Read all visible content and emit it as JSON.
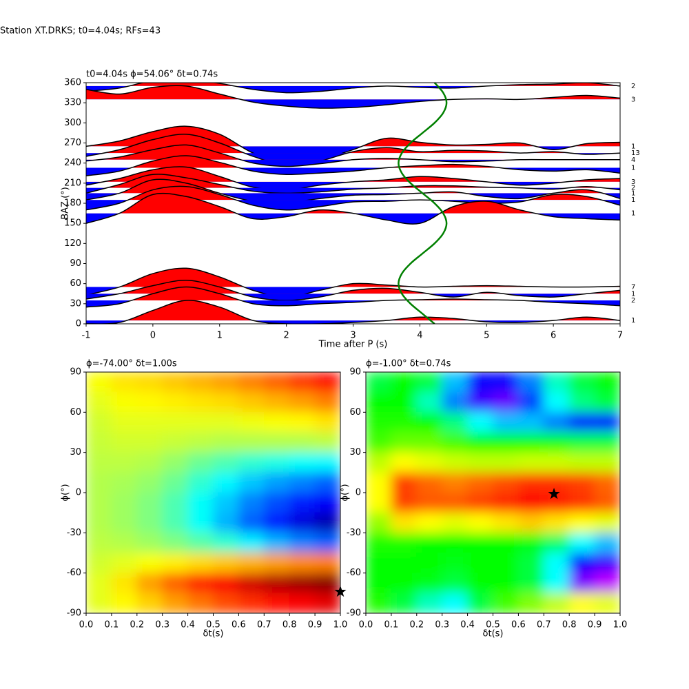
{
  "suptitle": "Station XT.DRKS; t0=4.04s; RFs=43",
  "chart_data": [
    {
      "type": "wiggle",
      "title": "t0=4.04s ϕ=54.06° δt=0.74s",
      "xlabel": "Time after P (s)",
      "ylabel": "BAZ (°)",
      "xlim": [
        -1,
        7
      ],
      "ylim": [
        0,
        360
      ],
      "xticks": [
        -1,
        0,
        1,
        2,
        3,
        4,
        5,
        6,
        7
      ],
      "yticks": [
        0,
        30,
        60,
        90,
        120,
        150,
        180,
        210,
        240,
        270,
        300,
        330,
        360
      ],
      "positive_color": "#ff0000",
      "negative_color": "#0000ff",
      "line_color": "#000000",
      "x": [
        -1,
        -0.5,
        0,
        0.5,
        1,
        1.5,
        2,
        2.5,
        3,
        3.5,
        4,
        4.5,
        5,
        5.5,
        6,
        6.5,
        7
      ],
      "traces": [
        {
          "baz": 355,
          "count": 2,
          "values": [
            -8,
            -3,
            8,
            10,
            4,
            -5,
            -10,
            -8,
            -3,
            0,
            -2,
            -3,
            0,
            2,
            3,
            5,
            0
          ]
        },
        {
          "baz": 335,
          "count": 3,
          "values": [
            15,
            8,
            18,
            20,
            8,
            -4,
            -10,
            -13,
            -12,
            -8,
            -3,
            0,
            1,
            0,
            3,
            6,
            2
          ]
        },
        {
          "baz": 265,
          "count": 1,
          "values": [
            0,
            8,
            22,
            30,
            18,
            -10,
            -25,
            -20,
            -5,
            12,
            6,
            2,
            3,
            5,
            -5,
            4,
            6
          ]
        },
        {
          "baz": 255,
          "count": 13,
          "values": [
            -5,
            5,
            20,
            28,
            15,
            -5,
            -18,
            -12,
            2,
            8,
            2,
            4,
            3,
            0,
            2,
            -2,
            0
          ]
        },
        {
          "baz": 245,
          "count": 4,
          "values": [
            -2,
            4,
            15,
            22,
            10,
            -5,
            -10,
            -6,
            0,
            2,
            0,
            -3,
            -2,
            0,
            0,
            0,
            0
          ]
        },
        {
          "baz": 233,
          "count": 1,
          "values": [
            -12,
            -5,
            10,
            18,
            8,
            -5,
            -10,
            -8,
            -5,
            0,
            3,
            5,
            2,
            -3,
            -5,
            -3,
            -8
          ]
        },
        {
          "baz": 212,
          "count": 3,
          "values": [
            -5,
            5,
            18,
            22,
            8,
            -8,
            -12,
            -5,
            0,
            3,
            8,
            5,
            0,
            -5,
            -2,
            3,
            5
          ]
        },
        {
          "baz": 203,
          "count": 2,
          "values": [
            -8,
            5,
            20,
            15,
            5,
            -5,
            -8,
            -6,
            -2,
            0,
            3,
            3,
            1,
            0,
            -2,
            2,
            -3
          ]
        },
        {
          "baz": 195,
          "count": 1,
          "values": [
            -10,
            0,
            20,
            15,
            0,
            -12,
            -14,
            -8,
            -3,
            -2,
            0,
            2,
            -5,
            -8,
            0,
            5,
            -8
          ]
        },
        {
          "baz": 185,
          "count": 1,
          "values": [
            -15,
            -5,
            15,
            20,
            8,
            -8,
            -15,
            -10,
            -3,
            -2,
            0,
            -2,
            -5,
            -3,
            8,
            5,
            -8
          ]
        },
        {
          "baz": 165,
          "count": 1,
          "values": [
            -15,
            0,
            28,
            25,
            10,
            -8,
            -5,
            5,
            0,
            -10,
            -15,
            10,
            18,
            5,
            -5,
            -8,
            -10
          ]
        },
        {
          "baz": 55,
          "count": 7,
          "values": [
            -12,
            0,
            20,
            28,
            15,
            -5,
            -15,
            -5,
            5,
            3,
            0,
            1,
            2,
            1,
            0,
            0,
            1
          ]
        },
        {
          "baz": 45,
          "count": 1,
          "values": [
            -8,
            0,
            12,
            20,
            10,
            -5,
            -10,
            -5,
            5,
            8,
            2,
            -5,
            2,
            -3,
            -5,
            0,
            5
          ]
        },
        {
          "baz": 35,
          "count": 2,
          "values": [
            -10,
            -5,
            10,
            20,
            10,
            -5,
            -8,
            -5,
            -3,
            0,
            1,
            2,
            1,
            0,
            -3,
            -5,
            -8
          ]
        },
        {
          "baz": 5,
          "count": 1,
          "values": [
            -5,
            -3,
            15,
            30,
            20,
            0,
            -5,
            -5,
            -3,
            0,
            5,
            3,
            -2,
            -3,
            0,
            5,
            0
          ]
        }
      ],
      "curve": {
        "color": "#008000",
        "baz": [
          0,
          15,
          30,
          45,
          60,
          75,
          90,
          105,
          120,
          135,
          150,
          165,
          180,
          195,
          210,
          225,
          240,
          255,
          270,
          285,
          300,
          315,
          330,
          345,
          360
        ],
        "time": [
          4.22,
          4.04,
          3.86,
          3.73,
          3.68,
          3.73,
          3.86,
          4.04,
          4.22,
          4.35,
          4.4,
          4.35,
          4.22,
          4.04,
          3.86,
          3.73,
          3.68,
          3.73,
          3.86,
          4.04,
          4.22,
          4.35,
          4.4,
          4.35,
          4.22
        ]
      }
    },
    {
      "type": "heatmap",
      "title": "ϕ=-74.00° δt=1.00s",
      "xlabel": "δt(s)",
      "ylabel": "ϕ(°)",
      "colormap": "jet",
      "xlim": [
        0,
        1
      ],
      "ylim": [
        -90,
        90
      ],
      "xticks": [
        {
          "value": 0,
          "label": "0.0"
        },
        0.1,
        0.2,
        0.3,
        0.4,
        0.5,
        0.6,
        0.7,
        0.8,
        0.9,
        {
          "value": 1,
          "label": "1.0"
        }
      ],
      "yticks": [
        -90,
        -60,
        -30,
        0,
        30,
        60,
        90
      ],
      "best": {
        "x": 1.0,
        "y": -74
      },
      "z": [
        [
          0.62,
          0.65,
          0.66,
          0.68,
          0.7,
          0.72,
          0.75,
          0.78,
          0.82,
          0.86
        ],
        [
          0.6,
          0.62,
          0.63,
          0.64,
          0.65,
          0.66,
          0.68,
          0.7,
          0.72,
          0.75
        ],
        [
          0.58,
          0.6,
          0.6,
          0.6,
          0.6,
          0.6,
          0.61,
          0.62,
          0.63,
          0.65
        ],
        [
          0.57,
          0.58,
          0.58,
          0.57,
          0.56,
          0.55,
          0.55,
          0.55,
          0.55,
          0.56
        ],
        [
          0.56,
          0.56,
          0.55,
          0.52,
          0.48,
          0.45,
          0.42,
          0.4,
          0.38,
          0.37
        ],
        [
          0.55,
          0.54,
          0.52,
          0.48,
          0.42,
          0.37,
          0.32,
          0.28,
          0.25,
          0.22
        ],
        [
          0.55,
          0.53,
          0.5,
          0.45,
          0.38,
          0.32,
          0.25,
          0.2,
          0.15,
          0.12
        ],
        [
          0.55,
          0.53,
          0.5,
          0.45,
          0.38,
          0.3,
          0.22,
          0.15,
          0.09,
          0.05
        ],
        [
          0.56,
          0.55,
          0.53,
          0.5,
          0.46,
          0.42,
          0.36,
          0.3,
          0.25,
          0.22
        ],
        [
          0.58,
          0.6,
          0.62,
          0.64,
          0.66,
          0.68,
          0.7,
          0.72,
          0.74,
          0.75
        ],
        [
          0.6,
          0.65,
          0.72,
          0.78,
          0.84,
          0.88,
          0.92,
          0.95,
          0.97,
          0.99
        ],
        [
          0.6,
          0.63,
          0.67,
          0.72,
          0.76,
          0.8,
          0.83,
          0.86,
          0.88,
          0.9
        ]
      ]
    },
    {
      "type": "heatmap",
      "title": "ϕ=-1.00° δt=0.74s",
      "xlabel": "δt(s)",
      "ylabel": "ϕ(°)",
      "colormap": "hsv",
      "xlim": [
        0,
        1
      ],
      "ylim": [
        -90,
        90
      ],
      "xticks": [
        {
          "value": 0,
          "label": "0.0"
        },
        0.1,
        0.2,
        0.3,
        0.4,
        0.5,
        0.6,
        0.7,
        0.8,
        0.9,
        {
          "value": 1,
          "label": "1.0"
        }
      ],
      "yticks": [
        -90,
        -60,
        -30,
        0,
        30,
        60,
        90
      ],
      "best": {
        "x": 0.74,
        "y": -1
      },
      "z": [
        [
          0.55,
          0.6,
          0.55,
          0.35,
          0.2,
          0.2,
          0.3,
          0.45,
          0.55,
          0.6
        ],
        [
          0.6,
          0.6,
          0.45,
          0.3,
          0.15,
          0.12,
          0.25,
          0.4,
          0.5,
          0.55
        ],
        [
          0.62,
          0.62,
          0.6,
          0.5,
          0.4,
          0.35,
          0.35,
          0.3,
          0.22,
          0.2
        ],
        [
          0.65,
          0.68,
          0.68,
          0.65,
          0.6,
          0.6,
          0.6,
          0.58,
          0.55,
          0.55
        ],
        [
          0.75,
          0.8,
          0.78,
          0.76,
          0.75,
          0.75,
          0.76,
          0.76,
          0.75,
          0.75
        ],
        [
          0.8,
          0.95,
          0.92,
          0.9,
          0.92,
          0.94,
          0.96,
          0.96,
          0.95,
          0.92
        ],
        [
          0.8,
          0.95,
          0.93,
          0.93,
          0.95,
          0.97,
          1.0,
          0.98,
          0.96,
          0.93
        ],
        [
          0.72,
          0.82,
          0.8,
          0.78,
          0.8,
          0.82,
          0.84,
          0.82,
          0.8,
          0.78
        ],
        [
          0.62,
          0.62,
          0.6,
          0.6,
          0.6,
          0.6,
          0.58,
          0.52,
          0.4,
          0.35
        ],
        [
          0.6,
          0.6,
          0.6,
          0.58,
          0.6,
          0.6,
          0.55,
          0.4,
          0.2,
          0.15
        ],
        [
          0.6,
          0.6,
          0.58,
          0.55,
          0.6,
          0.6,
          0.55,
          0.4,
          0.1,
          0.05
        ],
        [
          0.62,
          0.55,
          0.45,
          0.4,
          0.55,
          0.65,
          0.7,
          0.75,
          0.8,
          0.78
        ]
      ]
    }
  ]
}
